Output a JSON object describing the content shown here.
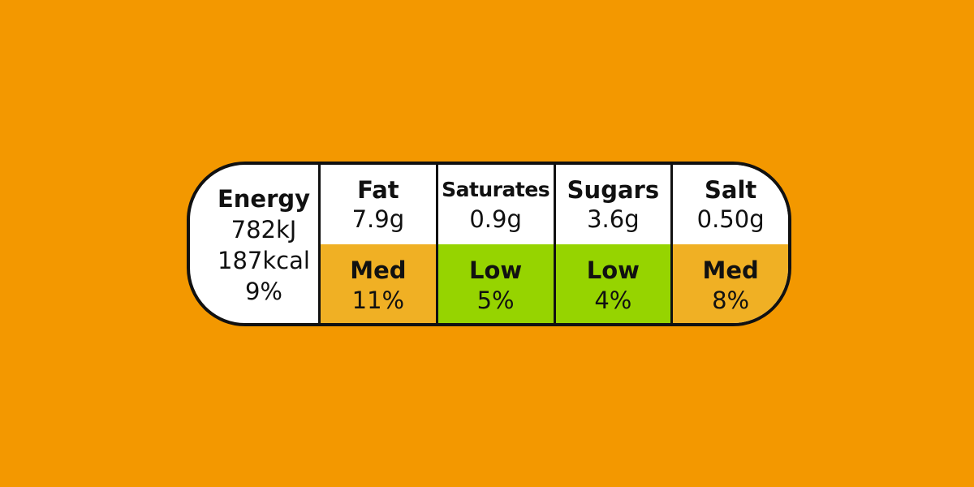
{
  "colors": {
    "background": "#f39800",
    "medium": "#f0b024",
    "low": "#96d400",
    "border": "#111111",
    "panel": "#ffffff"
  },
  "energy": {
    "title": "Energy",
    "kj": "782kJ",
    "kcal": "187kcal",
    "percent": "9%"
  },
  "nutrients": [
    {
      "name": "Fat",
      "amount": "7.9g",
      "level": "Med",
      "percent": "11%",
      "color": "#f0b024"
    },
    {
      "name": "Saturates",
      "amount": "0.9g",
      "level": "Low",
      "percent": "5%",
      "color": "#96d400"
    },
    {
      "name": "Sugars",
      "amount": "3.6g",
      "level": "Low",
      "percent": "4%",
      "color": "#96d400"
    },
    {
      "name": "Salt",
      "amount": "0.50g",
      "level": "Med",
      "percent": "8%",
      "color": "#f0b024"
    }
  ]
}
